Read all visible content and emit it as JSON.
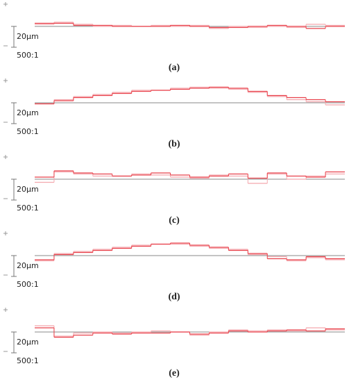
{
  "chart_data": [
    {
      "type": "step",
      "caption": "(a)",
      "scale_bar": {
        "value": 20,
        "label": "20µm"
      },
      "magnification": "500:1",
      "series": [
        {
          "color": "#e8404a",
          "values": [
            3,
            3,
            1,
            1,
            0,
            0,
            0,
            1,
            0,
            -1,
            -1,
            0,
            1,
            0,
            -2,
            0
          ]
        },
        {
          "color": "#f4a8ae",
          "values": [
            2,
            4,
            2,
            0,
            1,
            0,
            1,
            0,
            1,
            -2,
            0,
            -1,
            0,
            -1,
            2,
            1
          ]
        }
      ]
    },
    {
      "type": "step",
      "caption": "(b)",
      "scale_bar": {
        "value": 20,
        "label": "20µm"
      },
      "magnification": "500:1",
      "series": [
        {
          "color": "#e8404a",
          "values": [
            -1,
            2,
            5,
            7,
            9,
            11,
            12,
            13,
            14,
            15,
            14,
            11,
            7,
            5,
            3,
            1
          ]
        },
        {
          "color": "#f4a8ae",
          "values": [
            -1,
            3,
            6,
            8,
            10,
            12,
            12,
            14,
            15,
            14,
            13,
            10,
            6,
            3,
            1,
            -2
          ]
        }
      ]
    },
    {
      "type": "step",
      "caption": "(c)",
      "scale_bar": {
        "value": 20,
        "label": "20µm"
      },
      "magnification": "500:1",
      "series": [
        {
          "color": "#e8404a",
          "values": [
            2,
            8,
            6,
            5,
            3,
            4,
            6,
            4,
            2,
            3,
            5,
            1,
            6,
            3,
            2,
            7
          ]
        },
        {
          "color": "#f4a8ae",
          "values": [
            -3,
            7,
            5,
            3,
            3,
            5,
            4,
            2,
            1,
            4,
            3,
            -4,
            5,
            0,
            3,
            5
          ]
        }
      ]
    },
    {
      "type": "step",
      "caption": "(d)",
      "scale_bar": {
        "value": 20,
        "label": "20µm"
      },
      "magnification": "500:1",
      "series": [
        {
          "color": "#e8404a",
          "values": [
            -4,
            1,
            3,
            5,
            7,
            9,
            11,
            12,
            10,
            8,
            5,
            2,
            -3,
            -4,
            -1,
            -3
          ]
        },
        {
          "color": "#f4a8ae",
          "values": [
            -5,
            2,
            4,
            6,
            8,
            10,
            11,
            11,
            9,
            7,
            6,
            1,
            -1,
            -5,
            -2,
            -4
          ]
        }
      ]
    },
    {
      "type": "step",
      "caption": "(e)",
      "scale_bar": {
        "value": 20,
        "label": "20µm"
      },
      "magnification": "500:1",
      "series": [
        {
          "color": "#e8404a",
          "values": [
            4,
            -5,
            -3,
            -1,
            -2,
            -1,
            -1,
            0,
            -2,
            -1,
            1,
            0,
            1,
            2,
            1,
            3
          ]
        },
        {
          "color": "#f4a8ae",
          "values": [
            6,
            -4,
            -1,
            0,
            -1,
            0,
            1,
            0,
            -3,
            0,
            2,
            1,
            2,
            1,
            4,
            2
          ]
        }
      ]
    }
  ]
}
